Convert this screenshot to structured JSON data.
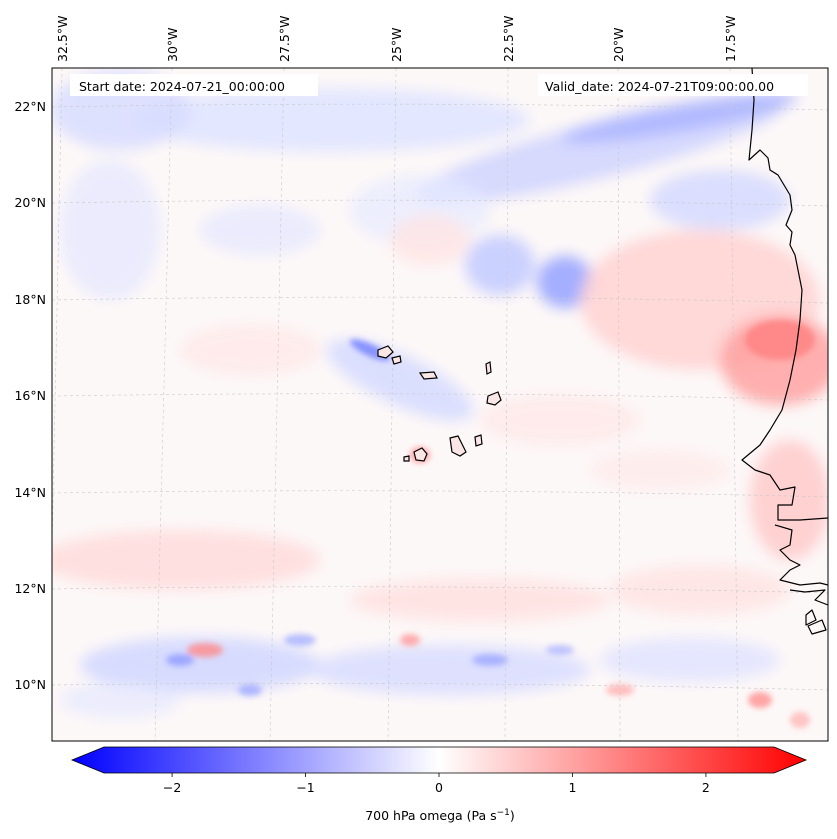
{
  "header": {
    "start_date": "Start date: 2024-07-21_00:00:00",
    "valid_date": "Valid_date: 2024-07-21T09:00:00.00"
  },
  "map": {
    "variable": "700 hPa omega",
    "lon_labels": [
      "32.5°W",
      "30°W",
      "27.5°W",
      "25°W",
      "22.5°W",
      "20°W",
      "17.5°W"
    ],
    "lat_labels": [
      "22°N",
      "20°N",
      "18°N",
      "16°N",
      "14°N",
      "12°N",
      "10°N"
    ]
  },
  "colorbar": {
    "label_main": "700 hPa omega (Pa s",
    "label_exp": "−1",
    "label_close": ")",
    "ticks": [
      "−2",
      "−1",
      "0",
      "1",
      "2"
    ],
    "tick_values": [
      -2,
      -1,
      0,
      1,
      2
    ],
    "vmin": -2.6,
    "vmax": 2.6,
    "colors": {
      "min": "#0000ff",
      "mid": "#ffffff",
      "max": "#ff0000"
    }
  }
}
